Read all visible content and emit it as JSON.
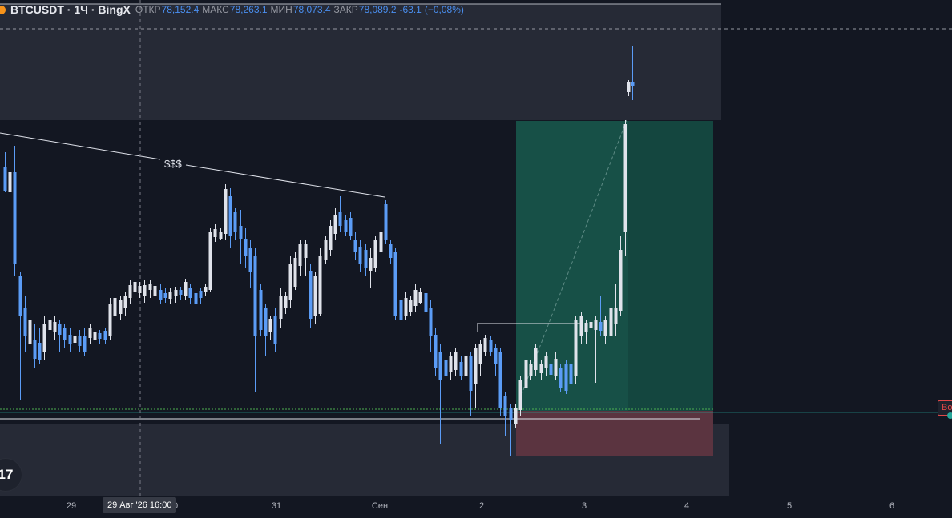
{
  "legend": {
    "symbol": "BTCUSDT",
    "timeframe": "1Ч",
    "exchange": "BingX",
    "open_label": "ОТКР",
    "open_value": "78,152.4",
    "high_label": "МАКС",
    "high_value": "78,263.1",
    "low_label": "МИН",
    "low_value": "78,073.4",
    "close_label": "ЗАКР",
    "close_value": "78,089.2",
    "change": "-63.1",
    "change_pct": "(−0,08%)"
  },
  "annotation_text": "$$$",
  "logo_text": "17",
  "price_tag_text": "Bo",
  "x_axis": {
    "labels": [
      "29",
      "31",
      "Сен",
      "2",
      "3",
      "4",
      "5",
      "6"
    ],
    "cursor_label": "29 Авг '26  16:00",
    "cursor_tail": "0"
  },
  "colors": {
    "background": "#131722",
    "candle": "#e0e3eb",
    "candle_down": "#5b9cf6",
    "profit_zone": "#14463f",
    "loss_zone": "#5b3440",
    "upper_zone": "#2a2e39",
    "crosshair": "#787b86"
  }
}
